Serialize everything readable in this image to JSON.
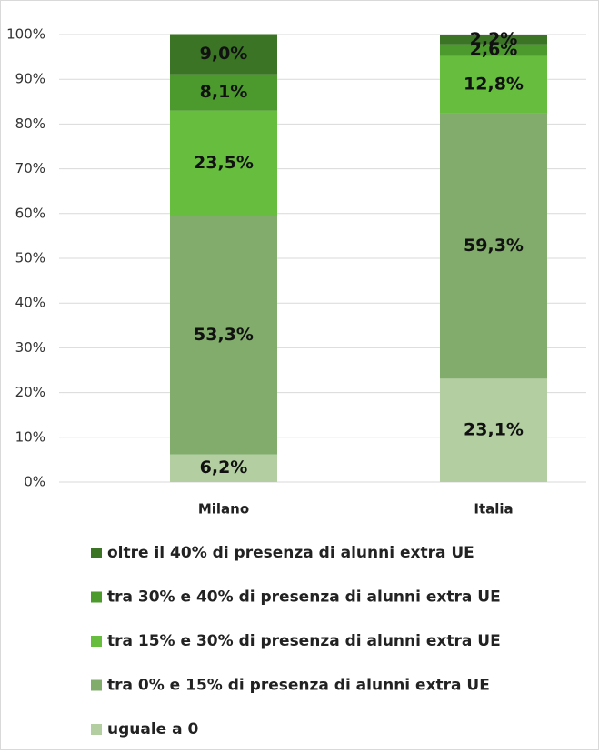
{
  "chart_data": {
    "type": "stacked_bar",
    "categories": [
      "Milano",
      "Italia"
    ],
    "series": [
      {
        "name": "uguale a 0",
        "color": "#b3cfa2",
        "values": [
          6.2,
          23.1
        ],
        "value_labels": [
          "6,2%",
          "23,1%"
        ]
      },
      {
        "name": "tra 0%  e 15% di presenza di alunni extra UE",
        "color": "#82ac6c",
        "values": [
          53.3,
          59.3
        ],
        "value_labels": [
          "53,3%",
          "59,3%"
        ]
      },
      {
        "name": "tra 15% e  30% di presenza di alunni extra UE",
        "color": "#66bd3e",
        "values": [
          23.5,
          12.8
        ],
        "value_labels": [
          "23,5%",
          "12,8%"
        ]
      },
      {
        "name": "tra 30% e  40% di presenza di alunni extra UE",
        "color": "#4c9a2e",
        "values": [
          8.1,
          2.6
        ],
        "value_labels": [
          "8,1%",
          "2,6%"
        ]
      },
      {
        "name": "oltre il 40% di presenza di alunni extra UE",
        "color": "#3a7424",
        "values": [
          9.0,
          2.2
        ],
        "value_labels": [
          "9,0%",
          "2,2%"
        ]
      }
    ],
    "ylim": [
      0,
      100
    ],
    "yticks": [
      {
        "value": 0,
        "label": "0%"
      },
      {
        "value": 10,
        "label": "10%"
      },
      {
        "value": 20,
        "label": "20%"
      },
      {
        "value": 30,
        "label": "30%"
      },
      {
        "value": 40,
        "label": "40%"
      },
      {
        "value": 50,
        "label": "50%"
      },
      {
        "value": 60,
        "label": "60%"
      },
      {
        "value": 70,
        "label": "70%"
      },
      {
        "value": 80,
        "label": "80%"
      },
      {
        "value": 90,
        "label": "90%"
      },
      {
        "value": 100,
        "label": "100%"
      }
    ],
    "grid": true
  }
}
